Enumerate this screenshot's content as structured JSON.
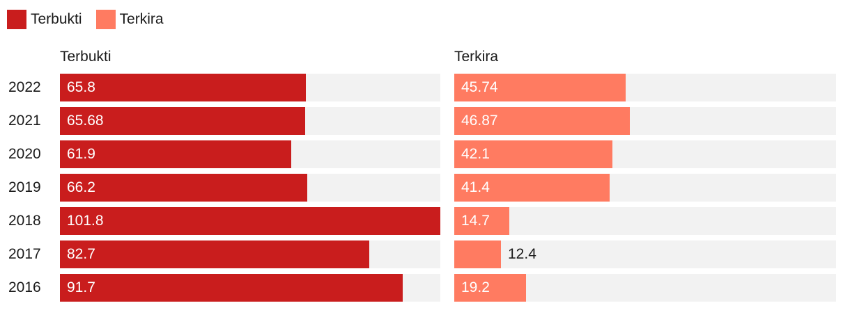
{
  "legend": [
    {
      "label": "Terbukti",
      "color": "#c91d1d"
    },
    {
      "label": "Terkira",
      "color": "#ff7b61"
    }
  ],
  "chart_data": {
    "type": "bar",
    "orientation": "horizontal",
    "layout": "small-multiples",
    "categories": [
      "2022",
      "2021",
      "2020",
      "2019",
      "2018",
      "2017",
      "2016"
    ],
    "series": [
      {
        "name": "Terbukti",
        "color": "#c91d1d",
        "values": [
          65.8,
          65.68,
          61.9,
          66.2,
          101.8,
          82.7,
          91.7
        ]
      },
      {
        "name": "Terkira",
        "color": "#ff7b61",
        "values": [
          45.74,
          46.87,
          42.1,
          41.4,
          14.7,
          12.4,
          19.2
        ]
      }
    ],
    "value_labels": [
      [
        "65.8",
        "65.68",
        "61.9",
        "66.2",
        "101.8",
        "82.7",
        "91.7"
      ],
      [
        "45.74",
        "46.87",
        "42.1",
        "41.4",
        "14.7",
        "12.4",
        "19.2"
      ]
    ],
    "xlim": [
      0,
      101.8
    ],
    "legend_position": "top-left",
    "grid": false
  }
}
